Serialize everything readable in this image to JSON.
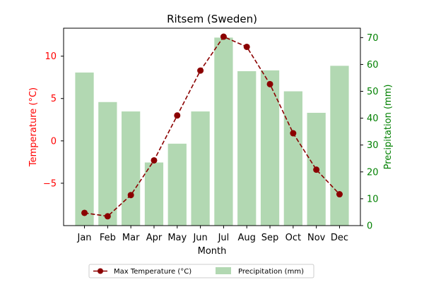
{
  "chart_data": {
    "type": "bar+line",
    "title": "Ritsem (Sweden)",
    "xlabel": "Month",
    "categories": [
      "Jan",
      "Feb",
      "Mar",
      "Apr",
      "May",
      "Jun",
      "Jul",
      "Aug",
      "Sep",
      "Oct",
      "Nov",
      "Dec"
    ],
    "temperature": {
      "name": "Max Temperature (°C)",
      "axis_label": "Temperature (°C)",
      "color": "#8b0000",
      "axis_color": "#ff0000",
      "values": [
        -8.5,
        -8.9,
        -6.4,
        -2.3,
        3.0,
        8.3,
        12.3,
        11.1,
        6.7,
        0.9,
        -3.4,
        -6.3
      ],
      "ylim": [
        -10,
        13.3
      ],
      "ticks": [
        -5,
        0,
        5,
        10
      ],
      "tick_labels": [
        "−5",
        "0",
        "5",
        "10"
      ]
    },
    "precipitation": {
      "name": "Precipitation (mm)",
      "axis_label": "Precipitation (mm)",
      "color": "#b2d8b2",
      "axis_color": "#008000",
      "values": [
        57,
        46,
        42.5,
        23.5,
        30.5,
        42.5,
        70,
        57.5,
        57.8,
        50,
        42,
        59.5
      ],
      "ylim": [
        0,
        73.5
      ],
      "ticks": [
        0,
        10,
        20,
        30,
        40,
        50,
        60,
        70
      ],
      "tick_labels": [
        "0",
        "10",
        "20",
        "30",
        "40",
        "50",
        "60",
        "70"
      ]
    },
    "legend_position": "bottom-center"
  }
}
